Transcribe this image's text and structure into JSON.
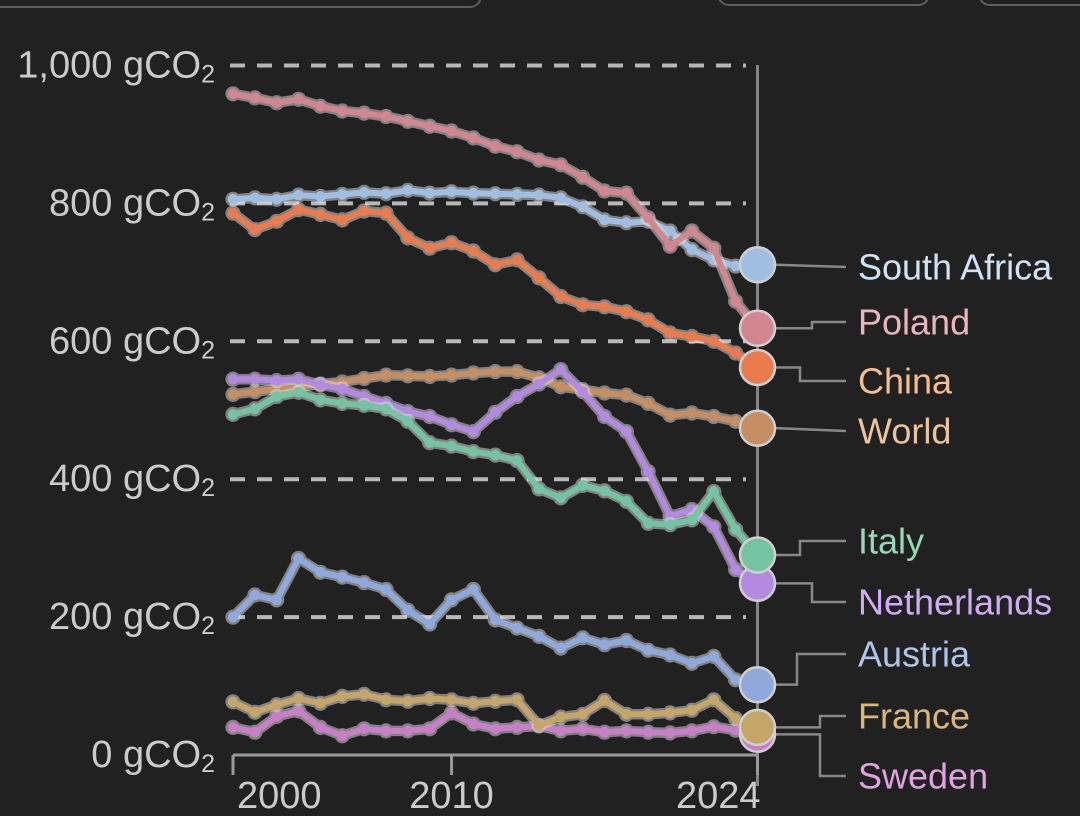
{
  "chart_data": {
    "type": "line",
    "unit": "gCO₂",
    "x": [
      2000,
      2001,
      2002,
      2003,
      2004,
      2005,
      2006,
      2007,
      2008,
      2009,
      2010,
      2011,
      2012,
      2013,
      2014,
      2015,
      2016,
      2017,
      2018,
      2019,
      2020,
      2021,
      2022,
      2023,
      2024
    ],
    "x_ticks": [
      {
        "year": 2000,
        "label": "2000"
      },
      {
        "year": 2010,
        "label": "2010"
      },
      {
        "year": 2024,
        "label": "2024"
      }
    ],
    "y_ticks": [
      {
        "value": 1000,
        "label": "1,000 gCO₂"
      },
      {
        "value": 800,
        "label": "800 gCO₂"
      },
      {
        "value": 600,
        "label": "600 gCO₂"
      },
      {
        "value": 400,
        "label": "400 gCO₂"
      },
      {
        "value": 200,
        "label": "200 gCO₂"
      },
      {
        "value": 0,
        "label": "0 gCO₂"
      }
    ],
    "ylim": [
      0,
      1000
    ],
    "grid": "dashed-horizontal",
    "legend_position": "right-of-line-ends",
    "series": [
      {
        "name": "South Africa",
        "color": "#a0bee1",
        "label_color": "#cfe3f6",
        "values": [
          806,
          808,
          806,
          812,
          810,
          813,
          816,
          814,
          819,
          815,
          817,
          815,
          814,
          813,
          812,
          808,
          795,
          776,
          772,
          774,
          760,
          733,
          718,
          709,
          711
        ]
      },
      {
        "name": "Poland",
        "color": "#d2868f",
        "label_color": "#eab6be",
        "values": [
          959,
          953,
          946,
          951,
          941,
          934,
          931,
          926,
          919,
          912,
          905,
          895,
          883,
          875,
          863,
          856,
          838,
          818,
          815,
          779,
          738,
          760,
          735,
          658,
          619
        ]
      },
      {
        "name": "China",
        "color": "#e97c4f",
        "label_color": "#f5bd92",
        "values": [
          786,
          762,
          774,
          791,
          784,
          776,
          789,
          786,
          750,
          735,
          743,
          731,
          711,
          718,
          692,
          665,
          653,
          650,
          643,
          631,
          612,
          607,
          600,
          583,
          562
        ]
      },
      {
        "name": "World",
        "color": "#c68f63",
        "label_color": "#ecc39c",
        "values": [
          523,
          527,
          531,
          534,
          538,
          541,
          546,
          551,
          550,
          549,
          551,
          554,
          556,
          556,
          547,
          534,
          530,
          525,
          522,
          510,
          493,
          496,
          491,
          484,
          474
        ]
      },
      {
        "name": "Italy",
        "color": "#74c3a2",
        "label_color": "#97d9b4",
        "values": [
          494,
          502,
          520,
          526,
          515,
          510,
          507,
          502,
          484,
          453,
          448,
          440,
          435,
          427,
          386,
          373,
          391,
          383,
          368,
          336,
          334,
          341,
          382,
          327,
          290
        ]
      },
      {
        "name": "Netherlands",
        "color": "#b38ae0",
        "label_color": "#cfacf3",
        "values": [
          545,
          545,
          543,
          545,
          537,
          531,
          520,
          510,
          498,
          491,
          479,
          469,
          497,
          520,
          538,
          559,
          527,
          491,
          469,
          411,
          346,
          356,
          331,
          269,
          249
        ]
      },
      {
        "name": "Austria",
        "color": "#8fa9dc",
        "label_color": "#aec6ea",
        "values": [
          200,
          232,
          225,
          285,
          265,
          258,
          250,
          240,
          210,
          190,
          225,
          240,
          196,
          184,
          172,
          155,
          170,
          160,
          166,
          152,
          145,
          133,
          143,
          109,
          102
        ]
      },
      {
        "name": "France",
        "color": "#c6a568",
        "label_color": "#d9b77c",
        "values": [
          77,
          62,
          73,
          82,
          75,
          85,
          88,
          80,
          78,
          82,
          80,
          75,
          78,
          80,
          43,
          55,
          59,
          79,
          59,
          59,
          61,
          65,
          80,
          53,
          40
        ]
      },
      {
        "name": "Sweden",
        "color": "#c87fc8",
        "label_color": "#e2a1e2",
        "values": [
          40,
          33,
          56,
          64,
          40,
          28,
          38,
          35,
          35,
          38,
          61,
          45,
          38,
          40,
          42,
          35,
          38,
          33,
          35,
          33,
          32,
          35,
          41,
          36,
          30
        ]
      }
    ],
    "colors": {
      "background": "#212121",
      "axis": "#9a9a9a",
      "gridline": "#b8b8b8",
      "tick_label": "#cbcbcb",
      "connector": "#888888",
      "marker_stroke": "#cfcfcf"
    }
  }
}
